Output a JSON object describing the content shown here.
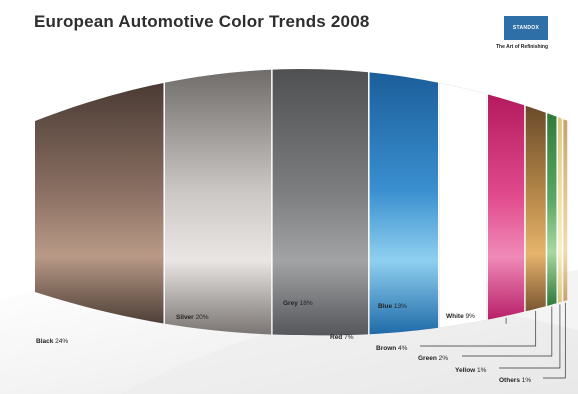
{
  "header": {
    "title": "European Automotive Color Trends 2008",
    "logo_text": "STANDOX",
    "logo_tagline": "The Art of Refinishing"
  },
  "chart_data": {
    "type": "bar",
    "title": "European Automotive Color Trends 2008",
    "categories": [
      "Black",
      "Silver",
      "Grey",
      "Blue",
      "White",
      "Red",
      "Brown",
      "Green",
      "Yellow",
      "Others"
    ],
    "values": [
      24,
      20,
      18,
      13,
      9,
      7,
      4,
      2,
      1,
      1
    ],
    "unit": "%",
    "colors": {
      "Black": [
        "#4a3b34",
        "#8a6f62",
        "#b99a87",
        "#4e3f37"
      ],
      "Silver": [
        "#6f6c6a",
        "#c9c6c3",
        "#e9e6e3",
        "#7a7573"
      ],
      "Grey": [
        "#4f5052",
        "#7b7c7e",
        "#a2a3a5",
        "#56575a"
      ],
      "Blue": [
        "#1b5e9b",
        "#3a8fcf",
        "#8fd0f0",
        "#1f6aa8"
      ],
      "White": [
        "#ffffff",
        "#ffffff",
        "#ffffff",
        "#ffffff"
      ],
      "Red": [
        "#b41a5e",
        "#e04a8c",
        "#f08ab8",
        "#b82068"
      ],
      "Brown": [
        "#6a4a2a",
        "#b88a4a",
        "#e6b46c",
        "#7a5530"
      ],
      "Green": [
        "#2f7a3a",
        "#5aa865",
        "#a8d8a0",
        "#2f7a3a"
      ],
      "Yellow": [
        "#d9c87a",
        "#efe3a8",
        "#f7efc8",
        "#d9c87a"
      ],
      "Others": [
        "#c9a06a",
        "#e8c68e",
        "#f3dcb0",
        "#c9a06a"
      ]
    }
  }
}
